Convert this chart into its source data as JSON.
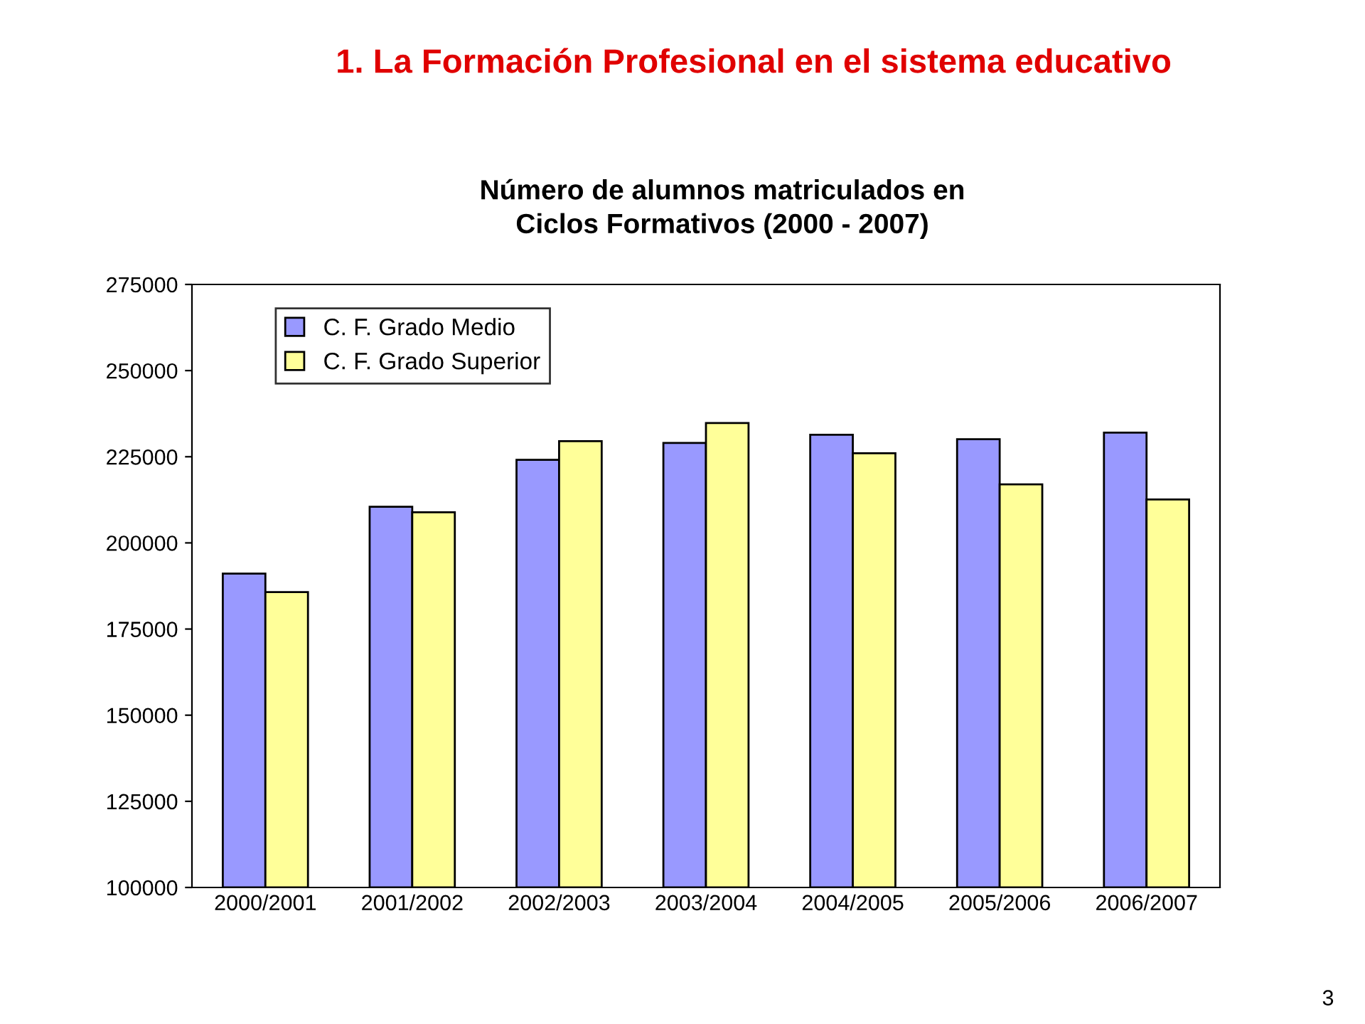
{
  "chart_data": {
    "type": "bar",
    "title": "1. La Formación Profesional en el sistema educativo",
    "subtitle": "Número de alumnos matriculados en\nCiclos Formativos (2000 - 2007)",
    "categories": [
      "2000/2001",
      "2001/2002",
      "2002/2003",
      "2003/2004",
      "2004/2005",
      "2005/2006",
      "2006/2007"
    ],
    "series": [
      {
        "name": "C. F. Grado Medio",
        "color": "#9999ff",
        "values": [
          191100,
          210500,
          224100,
          229000,
          231400,
          230100,
          232000
        ]
      },
      {
        "name": "C. F. Grado Superior",
        "color": "#ffff99",
        "values": [
          185700,
          208900,
          229500,
          234800,
          226000,
          217000,
          212600
        ]
      }
    ],
    "ylim": [
      100000,
      275000
    ],
    "yticks": [
      100000,
      125000,
      150000,
      175000,
      200000,
      225000,
      250000,
      275000
    ],
    "grid": false,
    "legend": "top left",
    "annotations": [
      "3"
    ]
  }
}
